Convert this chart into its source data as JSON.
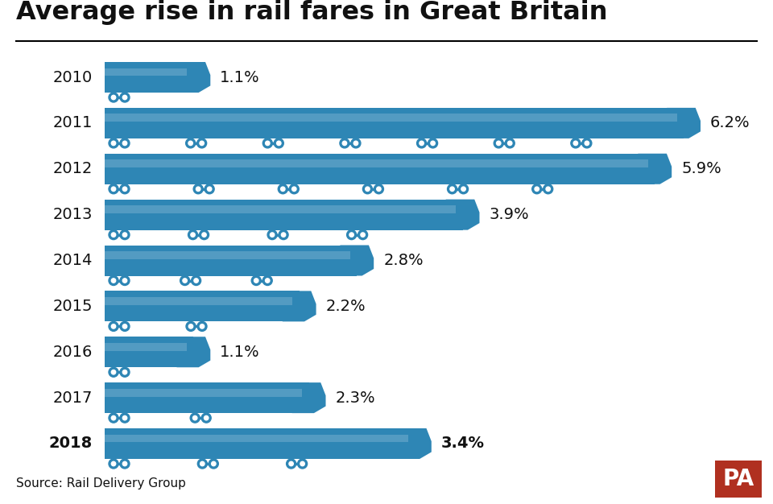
{
  "title": "Average rise in rail fares in Great Britain",
  "years": [
    "2010",
    "2011",
    "2012",
    "2013",
    "2014",
    "2015",
    "2016",
    "2017",
    "2018"
  ],
  "values": [
    1.1,
    6.2,
    5.9,
    3.9,
    2.8,
    2.2,
    1.1,
    2.3,
    3.4
  ],
  "max_value": 6.2,
  "bar_color": "#2e86b5",
  "background_color": "#ffffff",
  "text_color": "#111111",
  "source_text": "Source: Rail Delivery Group",
  "bold_year": "2018",
  "pa_box_color": "#b03020",
  "pa_text": "PA",
  "title_fontsize": 23,
  "label_fontsize": 14,
  "year_fontsize": 14,
  "source_fontsize": 11
}
